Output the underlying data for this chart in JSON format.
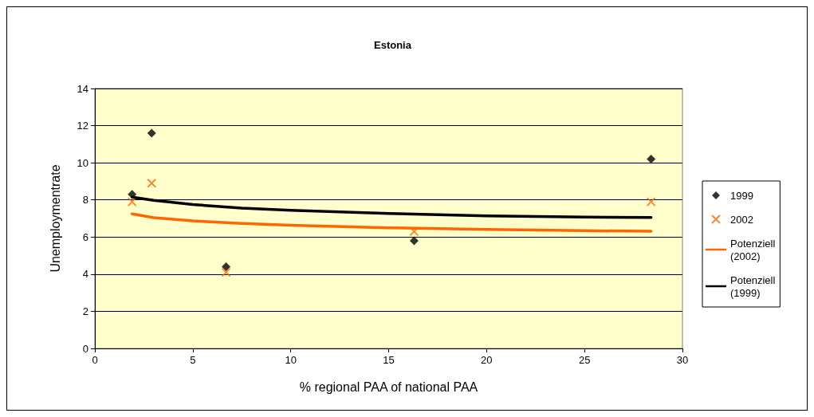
{
  "chart_data": {
    "type": "scatter",
    "title": "Estonia",
    "xlabel": "% regional PAA of national PAA",
    "ylabel": "Unemploymentrate",
    "xlim": [
      0,
      30
    ],
    "xticks": [
      0,
      5,
      10,
      15,
      20,
      25,
      30
    ],
    "ylim": [
      0,
      14
    ],
    "yticks": [
      0,
      2,
      4,
      6,
      8,
      10,
      12,
      14
    ],
    "grid": "y",
    "legend": "right",
    "series": [
      {
        "name": "1999",
        "type": "scatter",
        "marker": "diamond",
        "color": "#000000",
        "x": [
          1.9,
          2.9,
          6.7,
          16.3,
          28.4
        ],
        "values": [
          8.3,
          11.6,
          4.4,
          5.8,
          10.2
        ]
      },
      {
        "name": "2002",
        "type": "scatter",
        "marker": "cross",
        "color": "#ff6600",
        "x": [
          1.9,
          2.9,
          6.7,
          16.3,
          28.4
        ],
        "values": [
          7.9,
          8.9,
          4.1,
          6.3,
          7.9
        ]
      },
      {
        "name": "Potenziell (2002)",
        "type": "line",
        "marker": "none",
        "color": "#ff6600",
        "x": [
          1.9,
          3,
          5,
          7.5,
          10,
          15,
          20,
          25,
          28.4
        ],
        "values": [
          7.25,
          7.04,
          6.87,
          6.73,
          6.64,
          6.5,
          6.41,
          6.34,
          6.31
        ]
      },
      {
        "name": "Potenziell (1999)",
        "type": "line",
        "marker": "none",
        "color": "#000000",
        "x": [
          1.9,
          3,
          5,
          7.5,
          10,
          15,
          20,
          25,
          28.4
        ],
        "values": [
          8.15,
          7.98,
          7.75,
          7.56,
          7.44,
          7.27,
          7.14,
          7.07,
          7.05
        ]
      }
    ]
  }
}
